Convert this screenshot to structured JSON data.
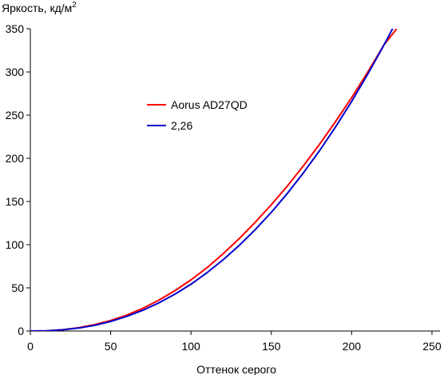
{
  "chart_data": {
    "type": "line",
    "ylabel": "Яркость, кд/м",
    "ylabel_sup": "2",
    "xlabel": "Оттенок серого",
    "xlim": [
      0,
      255
    ],
    "ylim": [
      0,
      350
    ],
    "xticks": [
      0,
      50,
      100,
      150,
      200,
      250
    ],
    "yticks": [
      0,
      50,
      100,
      150,
      200,
      250,
      300,
      350
    ],
    "grid": false,
    "legend_position": "center-left",
    "series": [
      {
        "name": "Aorus AD27QD",
        "color": "#ff0000",
        "x": [
          0,
          10,
          20,
          30,
          40,
          50,
          60,
          70,
          80,
          90,
          100,
          110,
          120,
          130,
          140,
          150,
          160,
          170,
          180,
          190,
          200,
          210,
          220,
          228
        ],
        "y": [
          0,
          0.3,
          1.5,
          3.8,
          7.4,
          12.2,
          18.4,
          26.2,
          35.7,
          46.8,
          59.3,
          73.4,
          89.4,
          107.0,
          126.0,
          146.3,
          168.0,
          191.4,
          216.2,
          242.6,
          270.4,
          299.9,
          331.0,
          350.0
        ]
      },
      {
        "name": "2,26",
        "color": "#0000cc",
        "x": [
          0,
          10,
          20,
          30,
          40,
          50,
          60,
          70,
          80,
          90,
          100,
          110,
          120,
          130,
          140,
          150,
          160,
          170,
          180,
          190,
          200,
          210,
          220,
          228
        ],
        "y": [
          0,
          0.3,
          1.4,
          3.4,
          6.6,
          11.1,
          16.9,
          24.0,
          32.6,
          42.7,
          54.3,
          67.6,
          82.5,
          99.1,
          117.4,
          137.5,
          159.4,
          183.2,
          208.8,
          236.4,
          265.9,
          297.4,
          330.9,
          359.0
        ]
      }
    ]
  }
}
